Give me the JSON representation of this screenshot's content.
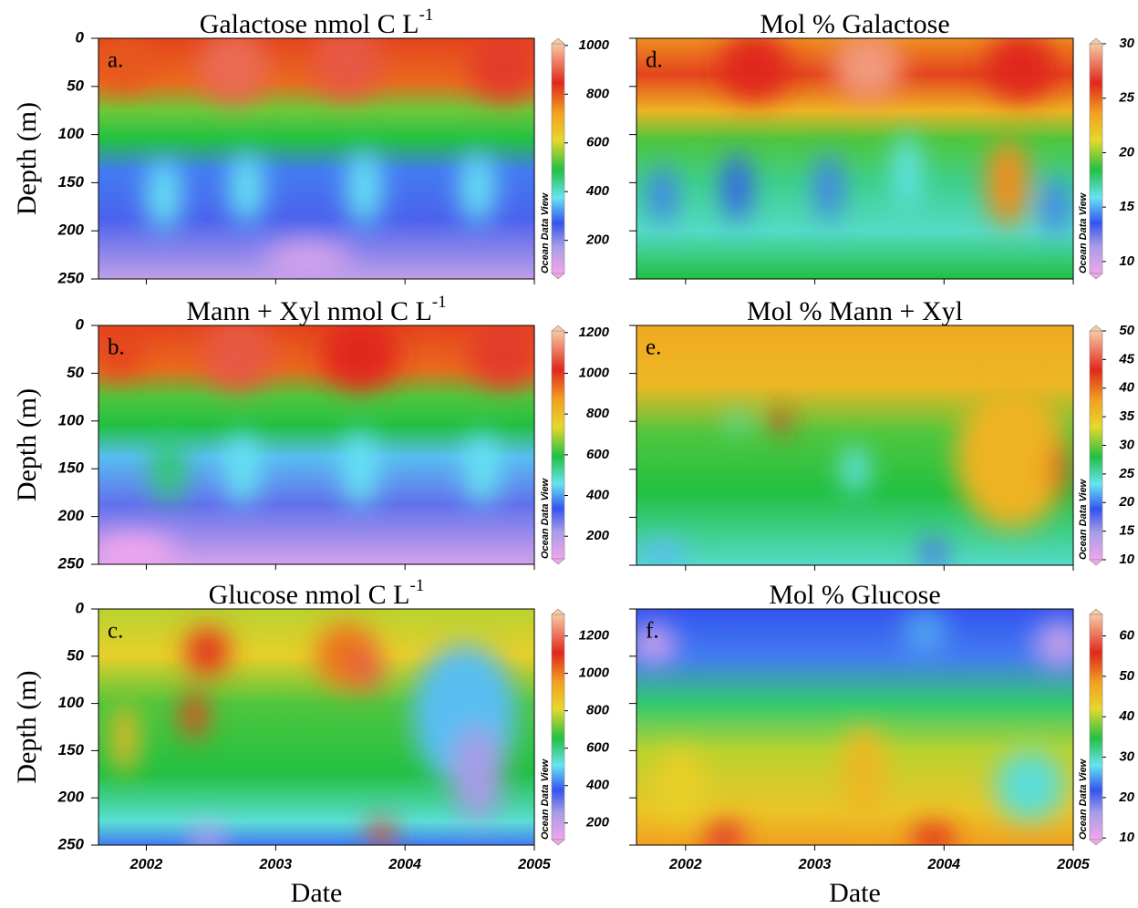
{
  "chart_data": [
    {
      "type": "contour",
      "title": "Galactose nmol C L",
      "title_superscript": "-1",
      "panel_label": "a.",
      "ylabel": "Depth (m)",
      "ylim": [
        250,
        0
      ],
      "yticks": [
        0,
        50,
        100,
        150,
        200,
        250
      ],
      "show_ytick_labels": true,
      "xlim": [
        2001.63,
        2005
      ],
      "xticks": [
        2002,
        2003,
        2004,
        2005
      ],
      "show_xtick_labels": false,
      "clim": [
        64,
        1007
      ],
      "colorbar_ticks": [
        200,
        400,
        600,
        800,
        1000
      ],
      "watermark": "Ocean Data View"
    },
    {
      "type": "contour",
      "title": "Mann + Xyl nmol C L",
      "title_superscript": "-1",
      "panel_label": "b.",
      "ylabel": "Depth (m)",
      "ylim": [
        250,
        0
      ],
      "yticks": [
        0,
        50,
        100,
        150,
        200,
        250
      ],
      "show_ytick_labels": true,
      "xlim": [
        2001.63,
        2005
      ],
      "xticks": [
        2002,
        2003,
        2004,
        2005
      ],
      "show_xtick_labels": false,
      "clim": [
        89,
        1208
      ],
      "colorbar_ticks": [
        200,
        400,
        600,
        800,
        1000,
        1200
      ],
      "watermark": "Ocean Data View"
    },
    {
      "type": "contour",
      "title": "Glucose nmol C L",
      "title_superscript": "-1",
      "panel_label": "c.",
      "ylabel": "Depth (m)",
      "xlabel": "Date",
      "ylim": [
        250,
        0
      ],
      "yticks": [
        0,
        50,
        100,
        150,
        200,
        250
      ],
      "show_ytick_labels": true,
      "xlim": [
        2001.63,
        2005
      ],
      "xticks": [
        2002,
        2003,
        2004,
        2005
      ],
      "show_xtick_labels": true,
      "clim": [
        111,
        1315
      ],
      "colorbar_ticks": [
        200,
        400,
        600,
        800,
        1000,
        1200
      ],
      "watermark": "Ocean Data View"
    },
    {
      "type": "contour",
      "title": "Mol % Galactose",
      "panel_label": "d.",
      "ylim": [
        250,
        0
      ],
      "yticks": [
        0,
        50,
        100,
        150,
        200,
        250
      ],
      "show_ytick_labels": false,
      "xlim": [
        2001.62,
        2005
      ],
      "xticks": [
        2002,
        2003,
        2004,
        2005
      ],
      "show_xtick_labels": false,
      "clim": [
        8.9,
        30
      ],
      "colorbar_ticks": [
        10,
        15,
        20,
        25,
        30
      ],
      "watermark": "Ocean Data View"
    },
    {
      "type": "contour",
      "title": "Mol % Mann + Xyl",
      "panel_label": "e.",
      "ylim": [
        250,
        0
      ],
      "yticks": [
        0,
        50,
        100,
        150,
        200,
        250
      ],
      "show_ytick_labels": false,
      "xlim": [
        2001.62,
        2005
      ],
      "xticks": [
        2002,
        2003,
        2004,
        2005
      ],
      "show_xtick_labels": false,
      "clim": [
        10,
        50
      ],
      "colorbar_ticks": [
        10,
        15,
        20,
        25,
        30,
        35,
        40,
        45,
        50
      ],
      "watermark": "Ocean Data View"
    },
    {
      "type": "contour",
      "title": "Mol % Glucose",
      "panel_label": "f.",
      "xlabel": "Date",
      "ylim": [
        250,
        0
      ],
      "yticks": [
        0,
        50,
        100,
        150,
        200,
        250
      ],
      "show_ytick_labels": false,
      "xlim": [
        2001.62,
        2005
      ],
      "xticks": [
        2002,
        2003,
        2004,
        2005
      ],
      "show_xtick_labels": true,
      "clim": [
        9.6,
        65.3
      ],
      "colorbar_ticks": [
        10,
        20,
        30,
        40,
        50,
        60
      ],
      "watermark": "Ocean Data View"
    }
  ]
}
